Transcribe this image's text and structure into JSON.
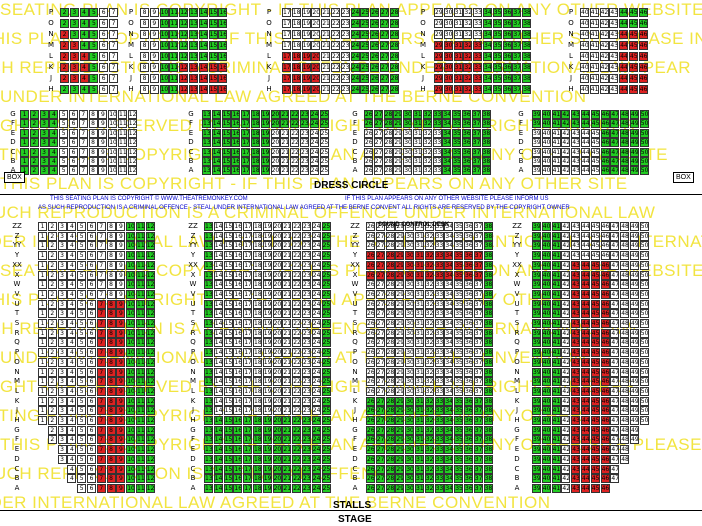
{
  "labels": {
    "dress_circle": "DRESS CIRCLE",
    "stalls": "STALLS",
    "stage": "STAGE",
    "box_left": "BOX",
    "box_right": "BOX",
    "sound_desk": "SOUND CONTROL DESK",
    "copyright_1": "THIS SEATING PLAN IS COPYRIGHT © WWW.THEATREMONKEY.COM",
    "copyright_2": "IF THIS PLAN APPEARS ON ANY OTHER WEBSITE PLEASE INFORM US",
    "copyright_3": "AS SUCH REPRODUCTION IS A CRIMINAL OFFENCE - STEAL UNDER INTERNATIONAL LAW AGREED AT THE BERNE CONVENT ALL RIGHTS ARE RESERVED BY THE COPYRIGHT OWNER"
  },
  "watermark_lines": [
    "SEATING PLAN IS COPYRIGHT - IF THIS PLAN APPEARS ON ANY OTHER WEBSITE PLEASE INFORM US CO",
    "THIS PLAN IS COPYRIGHT - IF THIS PLAN APPEARS ON ANY OTHER SITE PLEASE INFORM",
    "SUCH REPRODUCTION IS A CRIMINAL OFFENCE UNDER INTERNATIONAL LAW PEAR",
    "UNDER INTERNATIONAL LAW AGREED AT THE BERNE CONVENTION",
    "RIGHTS ARE RESERVED BY THE COPYRIGHT OWNER    ALL RIGHTS ARE RES",
    "SEATING PLAN IS COPYRIGHT - IF THIS PLAN APPEARS ON ANY OTHER WEBSITE",
    "THIS PLAN IS COPYRIGHT - IF THIS PLAN APPEARS ON ANY OTHER SITE",
    "SUCH REPRODUCTION IS A CRIMINAL OFFENCE UNDER INTERNATIONAL LAW",
    "UNDER INTERNATIONAL LAW AGREED AT THE BERNE CONVENTION    UNDER INTERNATIONAL",
    "SEATING PLAN IS COPYRIGHT - IF THIS PLAN APPEARS ON ANY OTHER WEBSITE PLEASE",
    "THIS PLAN IS COPYRIGHT - IF THIS PLAN APPEARS ON ANY OTHER",
    "SUCH REPRODUCTION IS A CRIMINAL OFFENCE UNDER INTERNATIONAL LAW",
    "UNDER INTERNATIONAL LAW AGREED AT THE BERNE CONVENTION",
    "RIGHTS ARE RESERVED BY THE COPYRIGHT OWNER   ALL RIGHTS ARE RES",
    "SEATING PLAN IS COPYRIGHT - IF THIS PLAN APPEARS ON ANY OTHER",
    "THIS PLAN IS COPYRIGHT - IF THIS PLAN APPEARS ON ANY OTHER SITE PLEASE",
    "SUCH REPRODUCTION IS A CRIMINAL OFFENCE",
    "UNDER INTERNATIONAL LAW AGREED AT THE BERNE CONVENTION"
  ],
  "colors": {
    "available": "#22cc22",
    "restricted": "#dd2222",
    "standard": "#ffffff",
    "watermark": "#f0e020"
  },
  "upper_circle": {
    "rows": [
      "P",
      "O",
      "N",
      "M",
      "L",
      "K",
      "J",
      "H"
    ],
    "sections": [
      {
        "from": 2,
        "to": 7
      },
      {
        "from": 8,
        "to": 16
      },
      {
        "from": 17,
        "to": 28
      },
      {
        "from": 29,
        "to": 38
      },
      {
        "from": 40,
        "to": 46
      }
    ],
    "red_seats": {
      "N": [
        1,
        2
      ],
      "M": [
        1,
        2
      ],
      "L": [
        1,
        2,
        3
      ],
      "K": [
        1,
        2,
        3
      ],
      "J": [
        1,
        2,
        3
      ]
    }
  },
  "dress_circle": {
    "rows": [
      "G",
      "F",
      "E",
      "D",
      "C",
      "B",
      "A"
    ],
    "sections": [
      {
        "from": 1,
        "to": 12
      },
      {
        "from": 13,
        "to": 25
      },
      {
        "from": 26,
        "to": 38
      },
      {
        "from": 39,
        "to": 50
      }
    ]
  },
  "stalls": {
    "rows": [
      "ZZ",
      "Z",
      "YY",
      "Y",
      "XX",
      "X",
      "W",
      "V",
      "U",
      "T",
      "S",
      "R",
      "Q",
      "P",
      "O",
      "N",
      "M",
      "L",
      "K",
      "J",
      "H",
      "G",
      "F",
      "E",
      "D",
      "C",
      "B",
      "A"
    ],
    "sections": [
      {
        "from": 1,
        "to": 12
      },
      {
        "from": 13,
        "to": 25
      },
      {
        "from": 26,
        "to": 38
      },
      {
        "from": 39,
        "to": 50
      }
    ]
  }
}
